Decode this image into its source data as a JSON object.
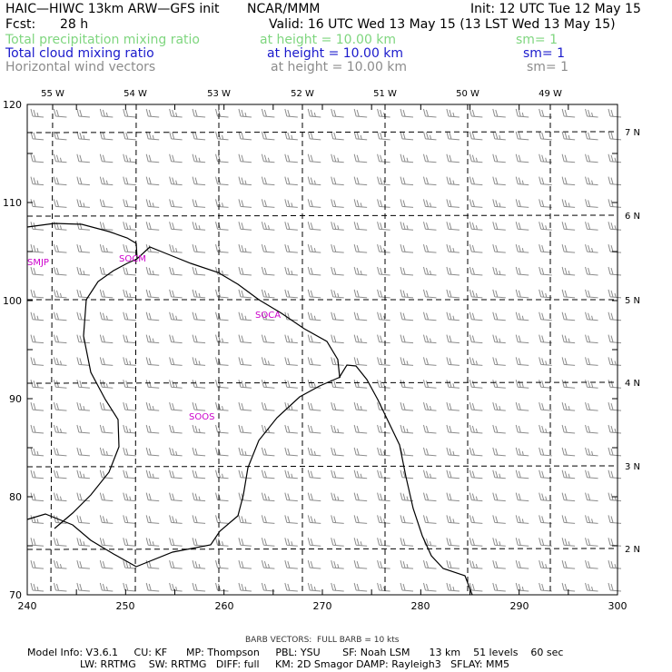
{
  "header": {
    "title": "HAIC—HIWC 13km ARW—GFS init",
    "org": "NCAR/MMM",
    "init": "Init: 12 UTC Tue 12 May 15",
    "fcst_label": "Fcst:",
    "fcst_value": "28 h",
    "valid": "Valid: 16 UTC Wed 13 May 15 (13 LST Wed 13 May 15)"
  },
  "fields": [
    {
      "name": "Total precipitation mixing ratio",
      "height": "at height = 10.00 km",
      "sm": "sm= 1",
      "color": "#7fd67f"
    },
    {
      "name": "Total cloud mixing ratio",
      "height": "at height = 10.00 km",
      "sm": "sm= 1",
      "color": "#1a1acc"
    },
    {
      "name": "Horizontal wind vectors",
      "height": "at height = 10.00 km",
      "sm": "sm= 1",
      "color": "#8c8c8c"
    }
  ],
  "map": {
    "x_ticks": [
      "240",
      "250",
      "260",
      "270",
      "280",
      "290",
      "300"
    ],
    "y_ticks": [
      "70",
      "80",
      "90",
      "100",
      "110",
      "120"
    ],
    "lon_labels": [
      "55 W",
      "54 W",
      "53 W",
      "52 W",
      "51 W",
      "50 W",
      "49 W"
    ],
    "lat_labels": [
      "2 N",
      "3 N",
      "4 N",
      "5 N",
      "6 N",
      "7 N"
    ],
    "places": [
      {
        "label": "SMJP",
        "color": "#cc00cc"
      },
      {
        "label": "SOCM",
        "color": "#cc00cc"
      },
      {
        "label": "SOCA",
        "color": "#cc00cc"
      },
      {
        "label": "SOOS",
        "color": "#cc00cc"
      }
    ]
  },
  "footer": {
    "barb": "BARB VECTORS:  FULL BARB = 10 kts",
    "line1": "Model Info: V3.6.1     CU: KF      MP: Thompson     PBL: YSU       SF: Noah LSM      13 km    51 levels    60 sec",
    "line2": "LW: RRTMG    SW: RRTMG   DIFF: full     KM: 2D Smagor DAMP: Rayleigh3   SFLAY: MM5"
  }
}
